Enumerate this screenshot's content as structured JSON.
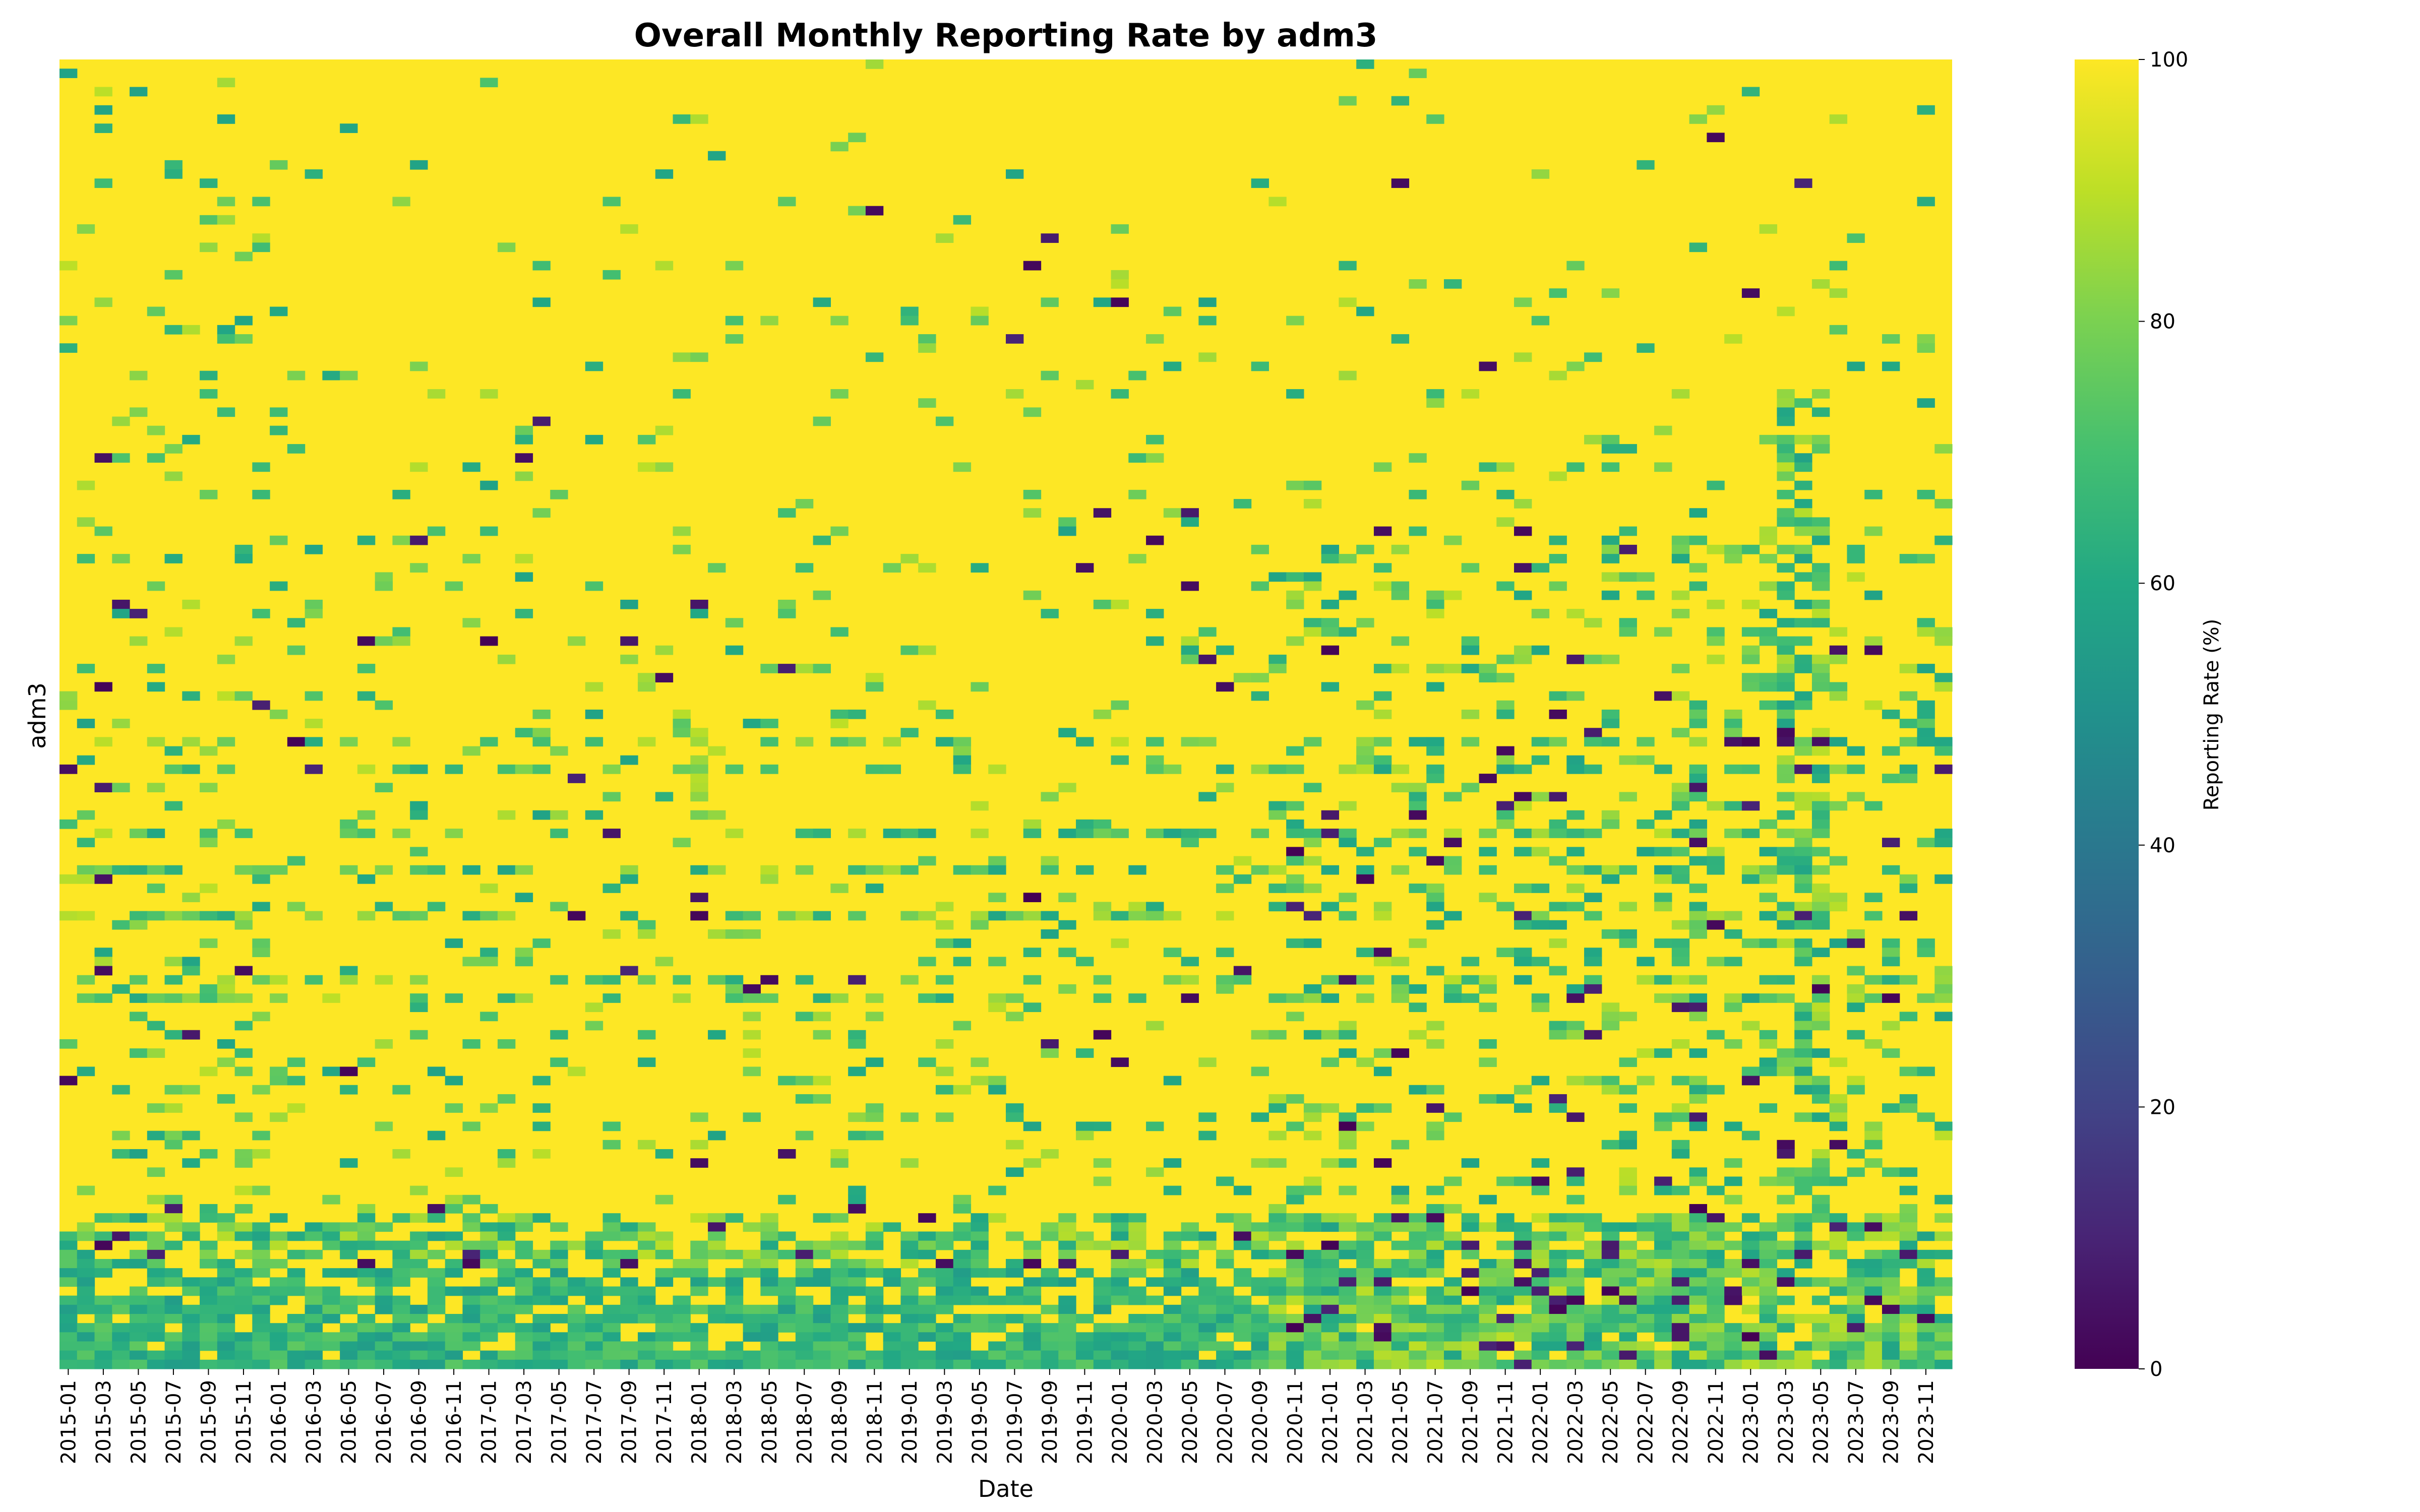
{
  "chart_data": {
    "type": "heatmap",
    "title": "Overall Monthly Reporting Rate by adm3",
    "xlabel": "Date",
    "ylabel": "adm3",
    "colorbar_label": "Reporting Rate (%)",
    "colormap": "viridis",
    "value_range": [
      0,
      100
    ],
    "colorbar_ticks": [
      "0",
      "20",
      "40",
      "60",
      "80",
      "100"
    ],
    "x_start": "2015-01",
    "x_end": "2023-12",
    "x_tick_labels": [
      "2015-01",
      "2015-03",
      "2015-05",
      "2015-07",
      "2015-09",
      "2015-11",
      "2016-01",
      "2016-03",
      "2016-05",
      "2016-07",
      "2016-09",
      "2016-11",
      "2017-01",
      "2017-03",
      "2017-05",
      "2017-07",
      "2017-09",
      "2017-11",
      "2018-01",
      "2018-03",
      "2018-05",
      "2018-07",
      "2018-09",
      "2018-11",
      "2019-01",
      "2019-03",
      "2019-05",
      "2019-07",
      "2019-09",
      "2019-11",
      "2020-01",
      "2020-03",
      "2020-05",
      "2020-07",
      "2020-09",
      "2020-11",
      "2021-01",
      "2021-03",
      "2021-05",
      "2021-07",
      "2021-09",
      "2021-11",
      "2022-01",
      "2022-03",
      "2022-05",
      "2022-07",
      "2022-09",
      "2022-11",
      "2023-01",
      "2023-03",
      "2023-05",
      "2023-07",
      "2023-09",
      "2023-11"
    ],
    "rows": 143,
    "grid": false,
    "legend": "colorbar-right"
  }
}
